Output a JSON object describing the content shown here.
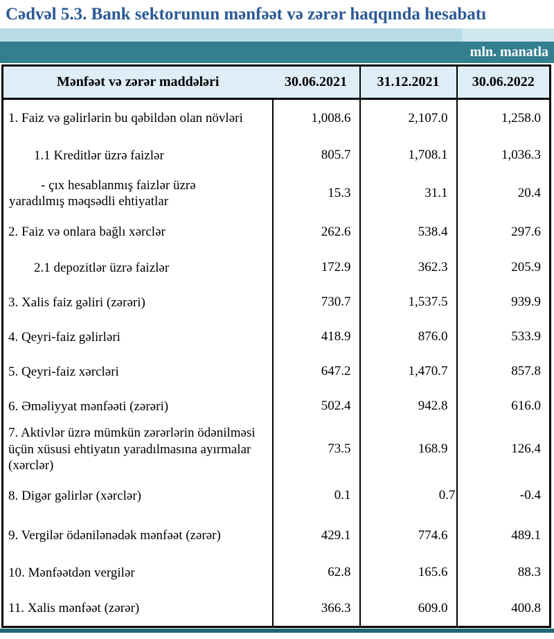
{
  "page": {
    "title": "Cədvəl 5.3. Bank sektorunun mənfəət və zərər haqqında hesabatı",
    "unit_label": "mln. manatla"
  },
  "colors": {
    "title_text": "#2b5a94",
    "band_light": "#b8dce6",
    "band_light_right": "#cfe7ee",
    "band_teal": "#337e90",
    "header_row_bg": "#dfeef6",
    "bottom_strip": "#1d6878",
    "table_border": "#000000"
  },
  "table": {
    "columns": [
      "Mənfəət və zərər maddələri",
      "30.06.2021",
      "31.12.2021",
      "30.06.2022"
    ],
    "rows": [
      {
        "label": "1. Faiz və gəlirlərin bu qəbildən olan növləri",
        "indent": 0,
        "values": [
          "1,008.6",
          "2,107.0",
          "1,258.0"
        ]
      },
      {
        "label": "1.1 Kreditlər üzrə faizlər",
        "indent": 1,
        "values": [
          "805.7",
          "1,708.1",
          "1,036.3"
        ]
      },
      {
        "label": "-  çıx hesablanmış faizlər üzrə\nyaradılmış məqsədli ehtiyatlar",
        "indent": 2,
        "values": [
          "15.3",
          "31.1",
          "20.4"
        ]
      },
      {
        "label": "2. Faiz və onlara bağlı xərclər",
        "indent": 0,
        "values": [
          "262.6",
          "538.4",
          "297.6"
        ]
      },
      {
        "label": "2.1 depozitlər üzrə faizlər",
        "indent": 1,
        "values": [
          "172.9",
          "362.3",
          "205.9"
        ]
      },
      {
        "label": "3. Xalis faiz gəliri (zərəri)",
        "indent": 0,
        "values": [
          "730.7",
          "1,537.5",
          "939.9"
        ]
      },
      {
        "label": "4. Qeyri-faiz gəlirləri",
        "indent": 0,
        "values": [
          "418.9",
          "876.0",
          "533.9"
        ]
      },
      {
        "label": "5. Qeyri-faiz xərcləri",
        "indent": 0,
        "values": [
          "647.2",
          "1,470.7",
          "857.8"
        ]
      },
      {
        "label": "6. Əməliyyat mənfəəti (zərəri)",
        "indent": 0,
        "values": [
          "502.4",
          "942.8",
          "616.0"
        ]
      },
      {
        "label": "7. Aktivlər üzrə mümkün zərərlərin ödənilməsi\nüçün xüsusi ehtiyatın yaradılmasına ayırmalar\n(xərclər)",
        "indent": 0,
        "values": [
          "73.5",
          "168.9",
          "126.4"
        ]
      },
      {
        "label": "8. Digər gəlirlər (xərclər)",
        "indent": 0,
        "values": [
          "0.1",
          "0.7",
          "-0.4"
        ]
      },
      {
        "label": "9. Vergilər ödənilənədək mənfəət (zərər)",
        "indent": 0,
        "values": [
          "429.1",
          "774.6",
          "489.1"
        ]
      },
      {
        "label": "10. Mənfəətdən vergilər",
        "indent": 0,
        "values": [
          "62.8",
          "165.6",
          "88.3"
        ]
      },
      {
        "label": "11. Xalis mənfəət (zərər)",
        "indent": 0,
        "values": [
          "366.3",
          "609.0",
          "400.8"
        ]
      }
    ]
  }
}
